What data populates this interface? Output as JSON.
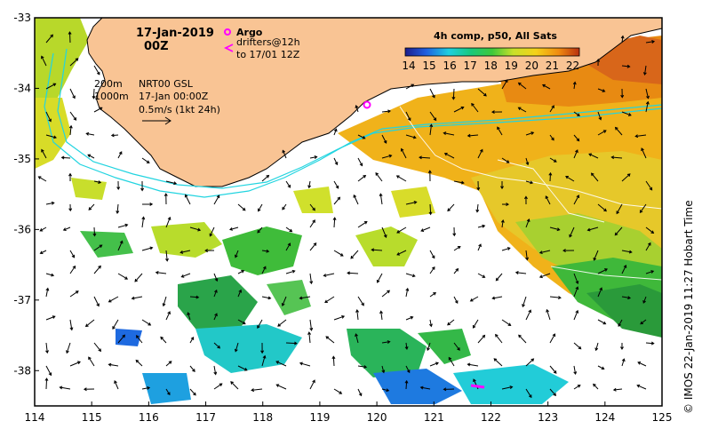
{
  "map": {
    "date_title": "17-Jan-2019",
    "time_title": "00Z",
    "argo_label": "Argo",
    "drifters_label": "drifters@12h",
    "drifters_to_label": "to 17/01 12Z",
    "depth_200": "200m",
    "depth_1000": "1000m",
    "product_line": "NRT00 GSL",
    "product_time": "17-Jan 00:00Z",
    "scale_label": "0.5m/s (1kt 24h)",
    "colorbar_title": "4h comp, p50, All Sats",
    "colorbar_ticks": [
      "14",
      "15",
      "16",
      "17",
      "18",
      "19",
      "20",
      "21",
      "22"
    ],
    "credit": "© IMOS 22-Jan-2019 11:27 Hobart Time",
    "lon_ticks": [
      "114",
      "115",
      "116",
      "117",
      "118",
      "119",
      "120",
      "121",
      "122",
      "123",
      "124",
      "125"
    ],
    "lat_ticks": [
      "-33",
      "-34",
      "-35",
      "-36",
      "-37",
      "-38"
    ],
    "colors": {
      "land": "#f9c494",
      "isobath": "#22d4e0",
      "argo": "#ff00ff",
      "drifter": "#ff00ff"
    }
  },
  "chart_data": {
    "type": "heatmap",
    "title": "4h comp, p50, All Sats",
    "xlim": [
      114,
      125
    ],
    "ylim": [
      -38.5,
      -33
    ],
    "colorbar_range": [
      14,
      22.5
    ],
    "argo_floats": [
      {
        "lon": 119.8,
        "lat": -34.2
      }
    ],
    "drifters": [
      {
        "lon": 121.7,
        "lat": -38.2
      }
    ]
  }
}
